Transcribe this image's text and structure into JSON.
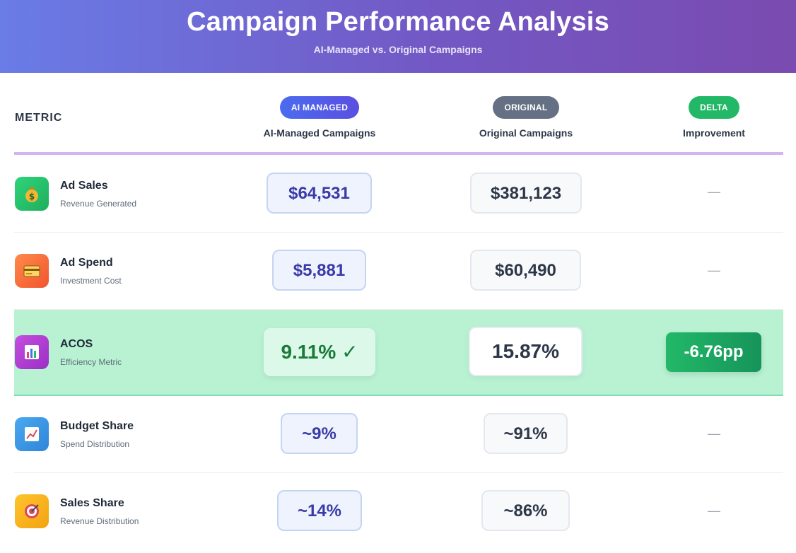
{
  "header": {
    "title": "Campaign Performance Analysis",
    "subtitle": "AI-Managed vs. Original Campaigns"
  },
  "columns": {
    "metric": "METRIC",
    "ai": {
      "badge": "AI MANAGED",
      "label": "AI-Managed Campaigns"
    },
    "original": {
      "badge": "ORIGINAL",
      "label": "Original Campaigns"
    },
    "delta": {
      "badge": "DELTA",
      "label": "Improvement"
    }
  },
  "rows": [
    {
      "name": "Ad Sales",
      "desc": "Revenue Generated",
      "icon": "money-bag-icon",
      "ai": "$64,531",
      "original": "$381,123",
      "delta": "—"
    },
    {
      "name": "Ad Spend",
      "desc": "Investment Cost",
      "icon": "credit-card-icon",
      "ai": "$5,881",
      "original": "$60,490",
      "delta": "—"
    },
    {
      "name": "ACOS",
      "desc": "Efficiency Metric",
      "icon": "bar-chart-icon",
      "ai": "9.11% ✓",
      "original": "15.87%",
      "delta": "-6.76pp",
      "highlight": true
    },
    {
      "name": "Budget Share",
      "desc": "Spend Distribution",
      "icon": "trend-chart-icon",
      "ai": "~9%",
      "original": "~91%",
      "delta": "—"
    },
    {
      "name": "Sales Share",
      "desc": "Revenue Distribution",
      "icon": "target-icon",
      "ai": "~14%",
      "original": "~86%",
      "delta": "—"
    }
  ],
  "colors": {
    "header_gradient_start": "#6a7ce6",
    "header_gradient_end": "#7a4bb0",
    "ai_accent": "#3a3aa8",
    "highlight_row": "#b8f2d3",
    "delta_green": "#22b868"
  }
}
